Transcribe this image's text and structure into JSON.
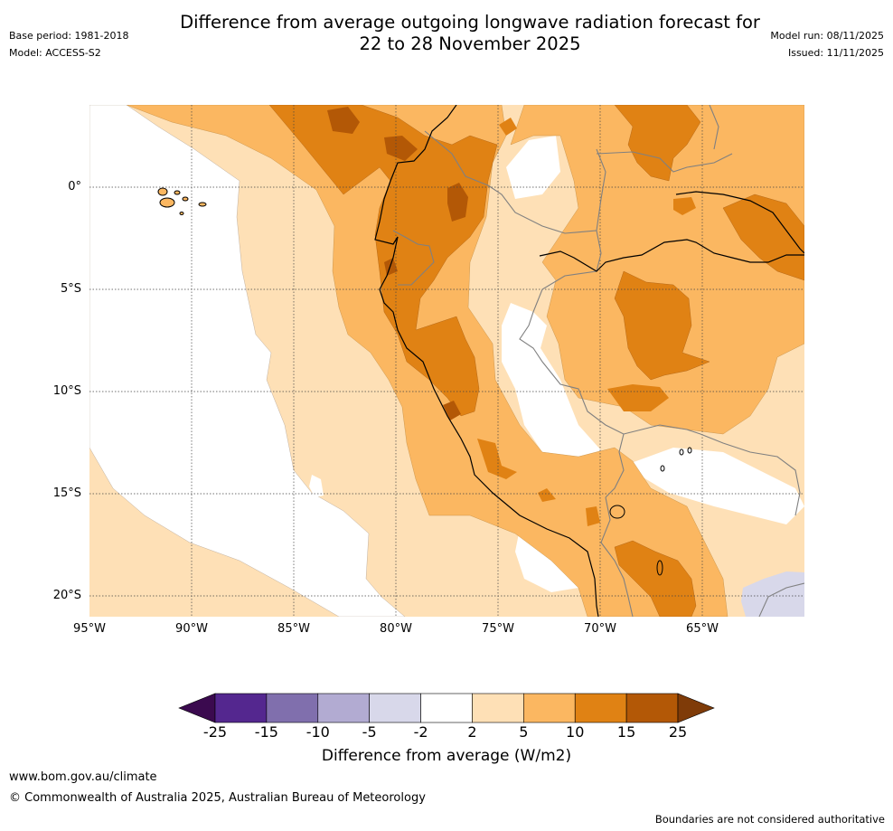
{
  "header": {
    "title_line1": "Difference from average outgoing longwave radiation forecast for",
    "title_line2": "22 to 28 November 2025",
    "base_period": "Base period: 1981-2018",
    "model": "Model: ACCESS-S2",
    "model_run": "Model run: 08/11/2025",
    "issued": "Issued: 11/11/2025"
  },
  "map": {
    "lat_labels": [
      "0°",
      "5°S",
      "10°S",
      "15°S",
      "20°S"
    ],
    "lon_labels": [
      "95°W",
      "90°W",
      "85°W",
      "80°W",
      "75°W",
      "70°W",
      "65°W"
    ]
  },
  "colorbar": {
    "tick_labels": [
      "-25",
      "-15",
      "-10",
      "-5",
      "-2",
      "2",
      "5",
      "10",
      "15",
      "25"
    ],
    "colors": [
      "#3b0a4f",
      "#54278f",
      "#806fad",
      "#b2abd2",
      "#d8d8ea",
      "#ffffff",
      "#fee0b6",
      "#fbb761",
      "#e08214",
      "#b35806",
      "#7f3b08"
    ],
    "title": "Difference from average (W/m2)"
  },
  "footer": {
    "website": "www.bom.gov.au/climate",
    "copyright": "© Commonwealth of Australia 2025, Australian Bureau of Meteorology",
    "disclaimer": "Boundaries are not considered authoritative"
  }
}
